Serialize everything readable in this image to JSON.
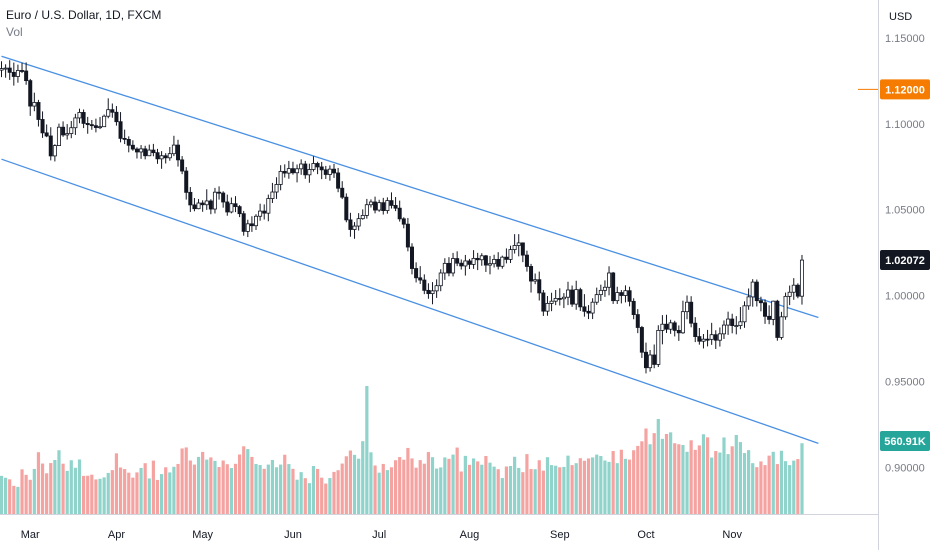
{
  "chart_data": {
    "type": "candlestick",
    "title": "Euro / U.S. Dollar, 1D, FXCM",
    "volume_label": "Vol",
    "currency": "USD",
    "price_axis": {
      "ticks": [
        "1.15000",
        "1.10000",
        "1.05000",
        "1.00000",
        "0.95000",
        "0.90000"
      ],
      "values": [
        1.15,
        1.1,
        1.05,
        1.0,
        0.95,
        0.9
      ],
      "range": [
        0.873,
        1.172
      ]
    },
    "time_axis": {
      "labels": [
        "Mar",
        "Apr",
        "May",
        "Jun",
        "Jul",
        "Aug",
        "Sep",
        "Oct",
        "Nov"
      ],
      "label_bar_index": [
        7,
        28,
        49,
        71,
        92,
        114,
        136,
        157,
        178
      ]
    },
    "price_badges": [
      {
        "value": "1.12000",
        "price": 1.12,
        "color": "#f57c00",
        "kind": "alert-line"
      },
      {
        "value": "1.02072",
        "price": 1.02072,
        "color": "#131722",
        "kind": "last-price"
      },
      {
        "value": "560.91K",
        "price": 0.9155,
        "color": "#26a69a",
        "kind": "volume"
      }
    ],
    "channel": {
      "color": "#4a90e2",
      "upper_line": [
        {
          "bar": 0,
          "price": 1.1393
        },
        {
          "bar": 199,
          "price": 0.9873
        }
      ],
      "lower_line": [
        {
          "bar": 0,
          "price": 1.0794
        },
        {
          "bar": 199,
          "price": 0.9141
        }
      ]
    },
    "candles": [
      [
        1.1312,
        1.1364,
        1.1271,
        1.1321
      ],
      [
        1.1321,
        1.1346,
        1.1268,
        1.1324
      ],
      [
        1.1324,
        1.137,
        1.1255,
        1.1299
      ],
      [
        1.1299,
        1.1356,
        1.1222,
        1.1275
      ],
      [
        1.1275,
        1.1344,
        1.1239,
        1.131
      ],
      [
        1.131,
        1.1355,
        1.1295,
        1.1307
      ],
      [
        1.1307,
        1.1357,
        1.1227,
        1.1251
      ],
      [
        1.1251,
        1.1261,
        1.1046,
        1.1103
      ],
      [
        1.1103,
        1.1181,
        1.1073,
        1.1124
      ],
      [
        1.1124,
        1.1139,
        1.0984,
        1.1025
      ],
      [
        1.1025,
        1.1072,
        1.0918,
        1.0947
      ],
      [
        1.0947,
        1.0996,
        1.0922,
        1.0929
      ],
      [
        1.0929,
        1.098,
        1.0787,
        1.0813
      ],
      [
        1.0813,
        1.0881,
        1.0781,
        1.0873
      ],
      [
        1.0873,
        1.1001,
        1.0872,
        1.098
      ],
      [
        1.098,
        1.1014,
        1.0924,
        1.0935
      ],
      [
        1.0935,
        1.0998,
        1.0908,
        1.0943
      ],
      [
        1.0943,
        1.1016,
        1.0916,
        1.0977
      ],
      [
        1.0977,
        1.1058,
        1.0935,
        1.1034
      ],
      [
        1.1034,
        1.1088,
        1.1003,
        1.1066
      ],
      [
        1.1066,
        1.1083,
        1.0975,
        1.1002
      ],
      [
        1.1002,
        1.104,
        1.0942,
        1.0995
      ],
      [
        1.0995,
        1.1022,
        1.0965,
        1.0989
      ],
      [
        1.0989,
        1.103,
        1.095,
        1.0978
      ],
      [
        1.0978,
        1.1039,
        1.0969,
        1.0983
      ],
      [
        1.0983,
        1.1054,
        1.0982,
        1.1044
      ],
      [
        1.1044,
        1.1148,
        1.1032,
        1.1082
      ],
      [
        1.1082,
        1.1118,
        1.1035,
        1.1067
      ],
      [
        1.1067,
        1.1103,
        1.0989,
        1.1012
      ],
      [
        1.1012,
        1.1068,
        1.0892,
        1.0915
      ],
      [
        1.0915,
        1.0966,
        1.0882,
        1.0909
      ],
      [
        1.0909,
        1.0927,
        1.0834,
        1.0875
      ],
      [
        1.0875,
        1.0904,
        1.0843,
        1.0853
      ],
      [
        1.0853,
        1.0863,
        1.0798,
        1.0836
      ],
      [
        1.0836,
        1.0876,
        1.0796,
        1.0854
      ],
      [
        1.0854,
        1.0872,
        1.0793,
        1.0814
      ],
      [
        1.0814,
        1.0879,
        1.0812,
        1.0847
      ],
      [
        1.0847,
        1.0883,
        1.0811,
        1.0832
      ],
      [
        1.0832,
        1.0854,
        1.0767,
        1.0796
      ],
      [
        1.0796,
        1.0841,
        1.0738,
        1.0814
      ],
      [
        1.0814,
        1.0829,
        1.0769,
        1.0802
      ],
      [
        1.0802,
        1.0865,
        1.0785,
        1.0826
      ],
      [
        1.0826,
        1.093,
        1.0812,
        1.0876
      ],
      [
        1.0876,
        1.0907,
        1.0751,
        1.079
      ],
      [
        1.079,
        1.0812,
        1.0707,
        1.0725
      ],
      [
        1.0725,
        1.0748,
        1.0559,
        1.0601
      ],
      [
        1.0601,
        1.0632,
        1.0487,
        1.0528
      ],
      [
        1.0528,
        1.0568,
        1.0491,
        1.0506
      ],
      [
        1.0506,
        1.0562,
        1.0503,
        1.0539
      ],
      [
        1.0539,
        1.0555,
        1.0488,
        1.0529
      ],
      [
        1.0529,
        1.0619,
        1.0499,
        1.0551
      ],
      [
        1.0551,
        1.0561,
        1.0474,
        1.0504
      ],
      [
        1.0504,
        1.0627,
        1.0478,
        1.0602
      ],
      [
        1.0602,
        1.0636,
        1.0559,
        1.0597
      ],
      [
        1.0597,
        1.0607,
        1.0512,
        1.0545
      ],
      [
        1.0545,
        1.0588,
        1.0465,
        1.0487
      ],
      [
        1.0487,
        1.0571,
        1.0479,
        1.0535
      ],
      [
        1.0535,
        1.0579,
        1.0486,
        1.0518
      ],
      [
        1.0518,
        1.0527,
        1.0457,
        1.0477
      ],
      [
        1.0477,
        1.0493,
        1.0349,
        1.0374
      ],
      [
        1.0374,
        1.0442,
        1.0341,
        1.0418
      ],
      [
        1.0418,
        1.0462,
        1.0371,
        1.0407
      ],
      [
        1.0407,
        1.0474,
        1.0382,
        1.0462
      ],
      [
        1.0462,
        1.0535,
        1.0436,
        1.0492
      ],
      [
        1.0492,
        1.0531,
        1.0443,
        1.048
      ],
      [
        1.048,
        1.0588,
        1.0433,
        1.0565
      ],
      [
        1.0565,
        1.0656,
        1.0539,
        1.0603
      ],
      [
        1.0603,
        1.0689,
        1.0563,
        1.0647
      ],
      [
        1.0647,
        1.0759,
        1.0613,
        1.0723
      ],
      [
        1.0723,
        1.0764,
        1.0687,
        1.0713
      ],
      [
        1.0713,
        1.0784,
        1.068,
        1.0739
      ],
      [
        1.0739,
        1.0779,
        1.0704,
        1.0715
      ],
      [
        1.0715,
        1.0763,
        1.0659,
        1.0738
      ],
      [
        1.0738,
        1.0793,
        1.0703,
        1.0766
      ],
      [
        1.0766,
        1.0784,
        1.068,
        1.0703
      ],
      [
        1.0703,
        1.0768,
        1.0657,
        1.0734
      ],
      [
        1.0734,
        1.0811,
        1.0722,
        1.0769
      ],
      [
        1.0769,
        1.0779,
        1.0707,
        1.0749
      ],
      [
        1.0749,
        1.0778,
        1.0678,
        1.0732
      ],
      [
        1.0732,
        1.0755,
        1.0679,
        1.0705
      ],
      [
        1.0705,
        1.0758,
        1.0669,
        1.0736
      ],
      [
        1.0736,
        1.0766,
        1.0685,
        1.0714
      ],
      [
        1.0714,
        1.0743,
        1.0602,
        1.0625
      ],
      [
        1.0625,
        1.0666,
        1.0562,
        1.0573
      ],
      [
        1.0573,
        1.0595,
        1.0427,
        1.0441
      ],
      [
        1.0441,
        1.0482,
        1.0343,
        1.0385
      ],
      [
        1.0385,
        1.0428,
        1.0331,
        1.0405
      ],
      [
        1.0405,
        1.048,
        1.0379,
        1.0448
      ],
      [
        1.0448,
        1.0502,
        1.0442,
        1.0467
      ],
      [
        1.0467,
        1.0563,
        1.0448,
        1.0529
      ],
      [
        1.0529,
        1.056,
        1.0513,
        1.0545
      ],
      [
        1.0545,
        1.0576,
        1.0479,
        1.0498
      ],
      [
        1.0498,
        1.0558,
        1.0488,
        1.0541
      ],
      [
        1.0541,
        1.0569,
        1.0472,
        1.0495
      ],
      [
        1.0495,
        1.0572,
        1.0477,
        1.0553
      ],
      [
        1.0553,
        1.0601,
        1.0507,
        1.0525
      ],
      [
        1.0525,
        1.0574,
        1.0492,
        1.0509
      ],
      [
        1.0509,
        1.0553,
        1.0431,
        1.0447
      ],
      [
        1.0447,
        1.0456,
        1.0392,
        1.0416
      ],
      [
        1.0416,
        1.0452,
        1.0258,
        1.0283
      ],
      [
        1.0283,
        1.0305,
        1.0124,
        1.0158
      ],
      [
        1.0158,
        1.0194,
        1.0077,
        1.0104
      ],
      [
        1.0104,
        1.0172,
        1.0068,
        1.0091
      ],
      [
        1.0091,
        1.0124,
        1.0009,
        1.0031
      ],
      [
        1.0031,
        1.0072,
        0.9982,
        1.0012
      ],
      [
        1.0012,
        1.0079,
        0.995,
        1.0028
      ],
      [
        1.0028,
        1.0095,
        0.9987,
        1.0058
      ],
      [
        1.0058,
        1.0154,
        1.0026,
        1.0132
      ],
      [
        1.0132,
        1.0218,
        1.0092,
        1.0188
      ],
      [
        1.0188,
        1.0224,
        1.0113,
        1.0132
      ],
      [
        1.0132,
        1.0249,
        1.0112,
        1.0216
      ],
      [
        1.0216,
        1.0258,
        1.0172,
        1.0189
      ],
      [
        1.0189,
        1.0211,
        1.0152,
        1.0173
      ],
      [
        1.0173,
        1.0237,
        1.0117,
        1.0202
      ],
      [
        1.0202,
        1.0214,
        1.0155,
        1.0182
      ],
      [
        1.0182,
        1.0265,
        1.0156,
        1.0217
      ],
      [
        1.0217,
        1.0249,
        1.0149,
        1.0209
      ],
      [
        1.0209,
        1.0247,
        1.0174,
        1.0232
      ],
      [
        1.0232,
        1.0237,
        1.0138,
        1.0178
      ],
      [
        1.0178,
        1.0231,
        1.0124,
        1.0186
      ],
      [
        1.0186,
        1.0238,
        1.0164,
        1.0211
      ],
      [
        1.0211,
        1.0253,
        1.0152,
        1.0171
      ],
      [
        1.0171,
        1.0233,
        1.0157,
        1.0224
      ],
      [
        1.0224,
        1.0275,
        1.0188,
        1.0211
      ],
      [
        1.0211,
        1.0291,
        1.019,
        1.0268
      ],
      [
        1.0268,
        1.0358,
        1.0245,
        1.0292
      ],
      [
        1.0292,
        1.0358,
        1.0229,
        1.0307
      ],
      [
        1.0307,
        1.031,
        1.0195,
        1.0236
      ],
      [
        1.0236,
        1.0262,
        1.014,
        1.017
      ],
      [
        1.017,
        1.0185,
        1.0018,
        1.0085
      ],
      [
        1.0085,
        1.0129,
        1.0067,
        1.0093
      ],
      [
        1.0093,
        1.014,
        0.9972,
        1.0016
      ],
      [
        1.0016,
        1.0033,
        0.9882,
        0.991
      ],
      [
        0.991,
        0.9998,
        0.9883,
        0.9955
      ],
      [
        0.9955,
        1.0017,
        0.991,
        0.9968
      ],
      [
        0.9968,
        1.0033,
        0.9945,
        0.9984
      ],
      [
        0.9984,
        1.0043,
        0.9943,
        0.9982
      ],
      [
        0.9982,
        1.0015,
        0.9928,
        0.9991
      ],
      [
        0.9991,
        1.0081,
        0.9945,
        1.0033
      ],
      [
        1.0033,
        1.0059,
        0.9935,
        0.9951
      ],
      [
        0.9951,
        1.0087,
        0.9918,
        1.0035
      ],
      [
        1.0035,
        1.0046,
        0.9911,
        0.9935
      ],
      [
        0.9935,
        1.0009,
        0.9878,
        0.9909
      ],
      [
        0.9909,
        0.9945,
        0.9864,
        0.9899
      ],
      [
        0.9899,
        0.9985,
        0.9864,
        0.9962
      ],
      [
        0.9962,
        1.0047,
        0.9947,
        1.0006
      ],
      [
        1.0006,
        1.0064,
        0.9969,
        1.0031
      ],
      [
        1.0031,
        1.0089,
        0.9993,
        1.0049
      ],
      [
        1.0049,
        1.0171,
        1.0002,
        1.0132
      ],
      [
        1.0132,
        1.0138,
        0.9952,
        0.9971
      ],
      [
        0.9971,
        1.0052,
        0.9952,
        1.0018
      ],
      [
        1.0018,
        1.0033,
        0.9955,
        1.0001
      ],
      [
        1.0001,
        1.006,
        0.9961,
        1.0029
      ],
      [
        1.0029,
        1.0052,
        0.9938,
        0.9967
      ],
      [
        0.9967,
        0.9985,
        0.9863,
        0.989
      ],
      [
        0.989,
        0.9922,
        0.9782,
        0.9815
      ],
      [
        0.9815,
        0.9824,
        0.9638,
        0.9671
      ],
      [
        0.9671,
        0.9727,
        0.9548,
        0.9581
      ],
      [
        0.9581,
        0.9684,
        0.9558,
        0.9655
      ],
      [
        0.9655,
        0.9716,
        0.9578,
        0.96
      ],
      [
        0.96,
        0.9828,
        0.9585,
        0.9798
      ],
      [
        0.9798,
        0.9887,
        0.9717,
        0.9834
      ],
      [
        0.9834,
        0.9889,
        0.9783,
        0.9805
      ],
      [
        0.9805,
        0.986,
        0.9778,
        0.9842
      ],
      [
        0.9842,
        0.9854,
        0.9763,
        0.9798
      ],
      [
        0.9798,
        0.9827,
        0.9737,
        0.9784
      ],
      [
        0.9784,
        0.9971,
        0.9778,
        0.9907
      ],
      [
        0.9907,
        1.0001,
        0.9863,
        0.9962
      ],
      [
        0.9962,
        0.9997,
        0.9816,
        0.984
      ],
      [
        0.984,
        0.9875,
        0.973,
        0.9762
      ],
      [
        0.9762,
        0.9812,
        0.9715,
        0.9735
      ],
      [
        0.9735,
        0.9777,
        0.9693,
        0.9747
      ],
      [
        0.9747,
        0.9801,
        0.9705,
        0.9746
      ],
      [
        0.9746,
        0.9842,
        0.9714,
        0.9773
      ],
      [
        0.9773,
        0.9799,
        0.969,
        0.9741
      ],
      [
        0.9741,
        0.9815,
        0.9704,
        0.9778
      ],
      [
        0.9778,
        0.9856,
        0.9748,
        0.9829
      ],
      [
        0.9829,
        0.9907,
        0.9772,
        0.9864
      ],
      [
        0.9864,
        0.9895,
        0.9781,
        0.9826
      ],
      [
        0.9826,
        0.9881,
        0.9775,
        0.9826
      ],
      [
        0.9826,
        0.9934,
        0.9805,
        0.9848
      ],
      [
        0.9848,
        0.9967,
        0.9813,
        0.9941
      ],
      [
        0.9941,
        1.0042,
        0.9918,
        0.9993
      ],
      [
        0.9993,
        1.0096,
        0.9936,
        1.0079
      ],
      [
        1.0079,
        1.0094,
        0.9937,
        0.9971
      ],
      [
        0.9971,
        0.9994,
        0.9909,
        0.9959
      ],
      [
        0.9959,
        0.9979,
        0.9836,
        0.988
      ],
      [
        0.988,
        0.9944,
        0.9834,
        0.9862
      ],
      [
        0.9862,
        0.9971,
        0.9828,
        0.9968
      ],
      [
        0.9968,
        0.9976,
        0.9738,
        0.9757
      ],
      [
        0.9757,
        0.9906,
        0.9744,
        0.9877
      ],
      [
        0.9877,
        1.0018,
        0.986,
        0.9996
      ],
      [
        0.9996,
        1.0059,
        0.9945,
        1.002
      ],
      [
        1.002,
        1.0102,
        0.9976,
        1.0061
      ],
      [
        1.0061,
        1.0072,
        0.9985,
        0.9997
      ],
      [
        0.9997,
        1.0237,
        0.9948,
        1.0207
      ]
    ],
    "volumes": [
      0.298,
      0.283,
      0.271,
      0.22,
      0.212,
      0.349,
      0.306,
      0.267,
      0.352,
      0.483,
      0.394,
      0.318,
      0.398,
      0.422,
      0.498,
      0.393,
      0.337,
      0.42,
      0.361,
      0.426,
      0.298,
      0.299,
      0.307,
      0.27,
      0.275,
      0.286,
      0.321,
      0.343,
      0.474,
      0.363,
      0.351,
      0.323,
      0.284,
      0.325,
      0.36,
      0.397,
      0.278,
      0.417,
      0.266,
      0.312,
      0.365,
      0.325,
      0.369,
      0.391,
      0.512,
      0.52,
      0.418,
      0.386,
      0.446,
      0.485,
      0.425,
      0.442,
      0.415,
      0.367,
      0.418,
      0.389,
      0.359,
      0.392,
      0.465,
      0.529,
      0.507,
      0.446,
      0.391,
      0.383,
      0.353,
      0.386,
      0.422,
      0.365,
      0.386,
      0.463,
      0.39,
      0.353,
      0.268,
      0.327,
      0.28,
      0.241,
      0.375,
      0.352,
      0.284,
      0.238,
      0.281,
      0.329,
      0.342,
      0.394,
      0.451,
      0.496,
      0.462,
      0.432,
      0.569,
      1.0,
      0.482,
      0.379,
      0.323,
      0.391,
      0.343,
      0.365,
      0.42,
      0.445,
      0.424,
      0.516,
      0.434,
      0.362,
      0.421,
      0.393,
      0.484,
      0.444,
      0.355,
      0.364,
      0.442,
      0.431,
      0.464,
      0.519,
      0.332,
      0.454,
      0.384,
      0.434,
      0.411,
      0.385,
      0.453,
      0.401,
      0.37,
      0.35,
      0.281,
      0.371,
      0.375,
      0.447,
      0.36,
      0.327,
      0.468,
      0.351,
      0.35,
      0.42,
      0.339,
      0.444,
      0.382,
      0.377,
      0.365,
      0.368,
      0.456,
      0.382,
      0.397,
      0.436,
      0.416,
      0.434,
      0.442,
      0.464,
      0.453,
      0.418,
      0.407,
      0.492,
      0.397,
      0.502,
      0.431,
      0.425,
      0.498,
      0.532,
      0.568,
      0.668,
      0.545,
      0.632,
      0.742,
      0.587,
      0.625,
      0.638,
      0.553,
      0.545,
      0.539,
      0.486,
      0.576,
      0.501,
      0.536,
      0.623,
      0.599,
      0.441,
      0.492,
      0.48,
      0.598,
      0.468,
      0.529,
      0.617,
      0.562,
      0.476,
      0.499,
      0.397,
      0.366,
      0.411,
      0.382,
      0.456,
      0.486,
      0.39,
      0.494,
      0.413,
      0.382,
      0.417,
      0.429,
      0.553
    ]
  }
}
